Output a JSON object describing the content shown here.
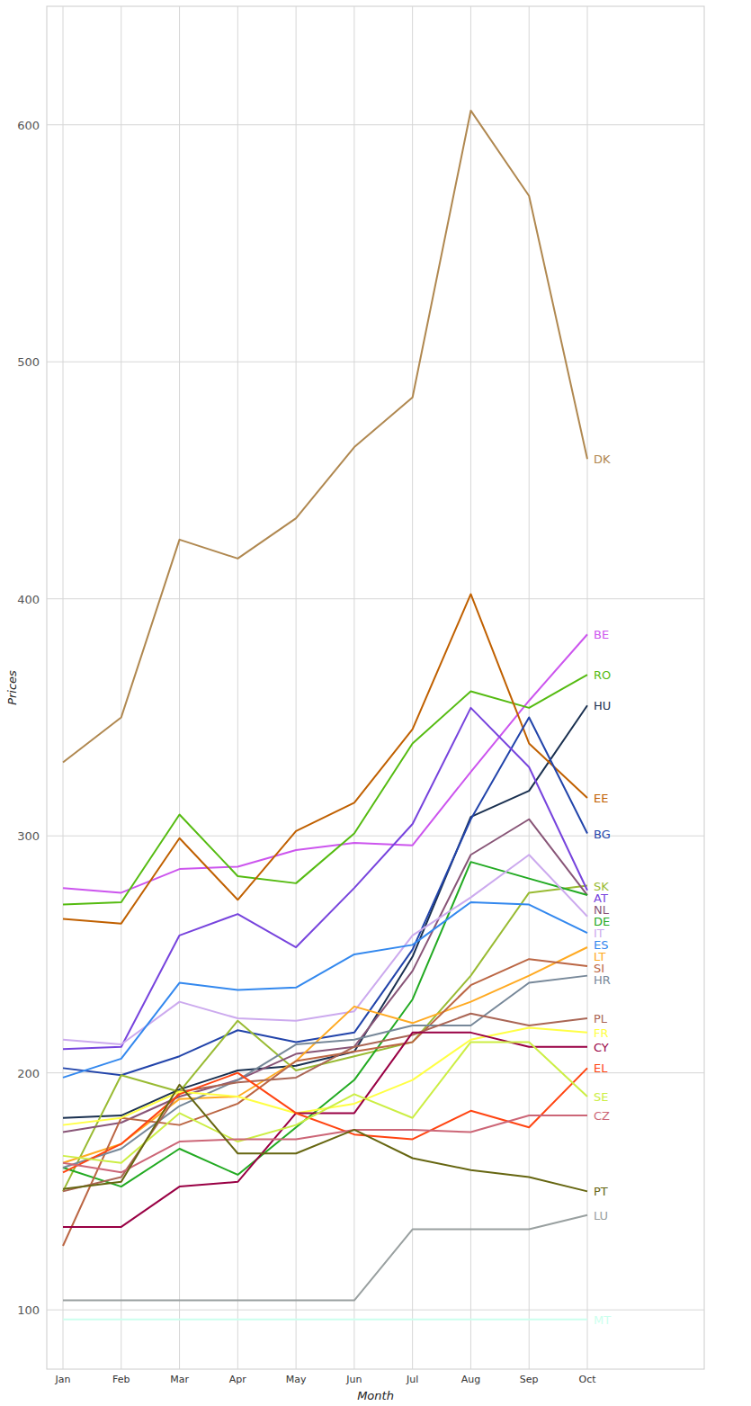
{
  "chart_data": {
    "type": "line",
    "x_label": "Month",
    "y_label": "Prices",
    "categories": [
      "Jan",
      "Feb",
      "Mar",
      "Apr",
      "May",
      "Jun",
      "Jul",
      "Aug",
      "Sep",
      "Oct"
    ],
    "ylim": [
      75,
      650
    ],
    "yticks": [
      100,
      200,
      300,
      400,
      500,
      600
    ],
    "grid": true,
    "series": [
      {
        "name": "DK",
        "color": "#b08850",
        "values": [
          331,
          350,
          425,
          417,
          434,
          464,
          485,
          606,
          570,
          459
        ]
      },
      {
        "name": "BE",
        "color": "#cc55ee",
        "values": [
          278,
          276,
          286,
          287,
          294,
          297,
          296,
          327,
          357,
          385
        ]
      },
      {
        "name": "RO",
        "color": "#55bb11",
        "values": [
          271,
          272,
          309,
          283,
          280,
          301,
          339,
          361,
          354,
          368
        ]
      },
      {
        "name": "HU",
        "color": "#1a3050",
        "values": [
          181,
          182,
          193,
          201,
          203,
          209,
          249,
          308,
          319,
          355
        ]
      },
      {
        "name": "EE",
        "color": "#c06000",
        "values": [
          265,
          263,
          299,
          273,
          302,
          314,
          345,
          402,
          339,
          316
        ]
      },
      {
        "name": "BG",
        "color": "#2244aa",
        "values": [
          202,
          199,
          207,
          218,
          213,
          217,
          252,
          307,
          350,
          301
        ]
      },
      {
        "name": "SK",
        "color": "#99bb33",
        "values": [
          150,
          199,
          192,
          222,
          201,
          207,
          213,
          241,
          276,
          279
        ]
      },
      {
        "name": "AT",
        "color": "#7744dd",
        "values": [
          210,
          211,
          258,
          267,
          253,
          278,
          305,
          354,
          329,
          277
        ]
      },
      {
        "name": "NL",
        "color": "#885577",
        "values": [
          175,
          179,
          190,
          197,
          208,
          211,
          243,
          292,
          307,
          275
        ]
      },
      {
        "name": "DE",
        "color": "#22aa22",
        "values": [
          160,
          152,
          168,
          157,
          177,
          197,
          231,
          289,
          282,
          275
        ]
      },
      {
        "name": "IT",
        "color": "#ccaaee",
        "values": [
          214,
          212,
          230,
          223,
          222,
          226,
          258,
          274,
          292,
          266
        ]
      },
      {
        "name": "ES",
        "color": "#3388ee",
        "values": [
          198,
          206,
          238,
          235,
          236,
          250,
          254,
          272,
          271,
          259
        ]
      },
      {
        "name": "LT",
        "color": "#ffaa22",
        "values": [
          162,
          170,
          189,
          190,
          205,
          228,
          221,
          230,
          241,
          253
        ]
      },
      {
        "name": "SI",
        "color": "#bb6644",
        "values": [
          127,
          181,
          178,
          187,
          205,
          209,
          213,
          237,
          248,
          245
        ]
      },
      {
        "name": "HR",
        "color": "#778899",
        "values": [
          160,
          168,
          186,
          197,
          212,
          214,
          220,
          220,
          238,
          241
        ]
      },
      {
        "name": "PL",
        "color": "#aa6655",
        "values": [
          150,
          156,
          192,
          196,
          198,
          211,
          216,
          225,
          220,
          223
        ]
      },
      {
        "name": "FR",
        "color": "#ffff44",
        "values": [
          178,
          181,
          192,
          190,
          183,
          187,
          197,
          214,
          219,
          217
        ]
      },
      {
        "name": "CY",
        "color": "#990044",
        "values": [
          135,
          135,
          152,
          154,
          183,
          183,
          217,
          217,
          211,
          211
        ]
      },
      {
        "name": "EL",
        "color": "#ff4411",
        "values": [
          158,
          170,
          191,
          200,
          183,
          174,
          172,
          184,
          177,
          202
        ]
      },
      {
        "name": "SE",
        "color": "#ccee44",
        "values": [
          165,
          162,
          183,
          171,
          178,
          191,
          181,
          213,
          213,
          190
        ]
      },
      {
        "name": "CZ",
        "color": "#cc6677",
        "values": [
          162,
          158,
          171,
          172,
          172,
          176,
          176,
          175,
          182,
          182
        ]
      },
      {
        "name": "PT",
        "color": "#666611",
        "values": [
          151,
          154,
          195,
          166,
          166,
          176,
          164,
          159,
          156,
          150
        ]
      },
      {
        "name": "LU",
        "color": "#99a0a0",
        "values": [
          104,
          104,
          104,
          104,
          104,
          104,
          134,
          134,
          134,
          140
        ]
      },
      {
        "name": "MT",
        "color": "#ccffee",
        "values": [
          96,
          96,
          96,
          96,
          96,
          96,
          96,
          96,
          96,
          96
        ]
      }
    ]
  }
}
